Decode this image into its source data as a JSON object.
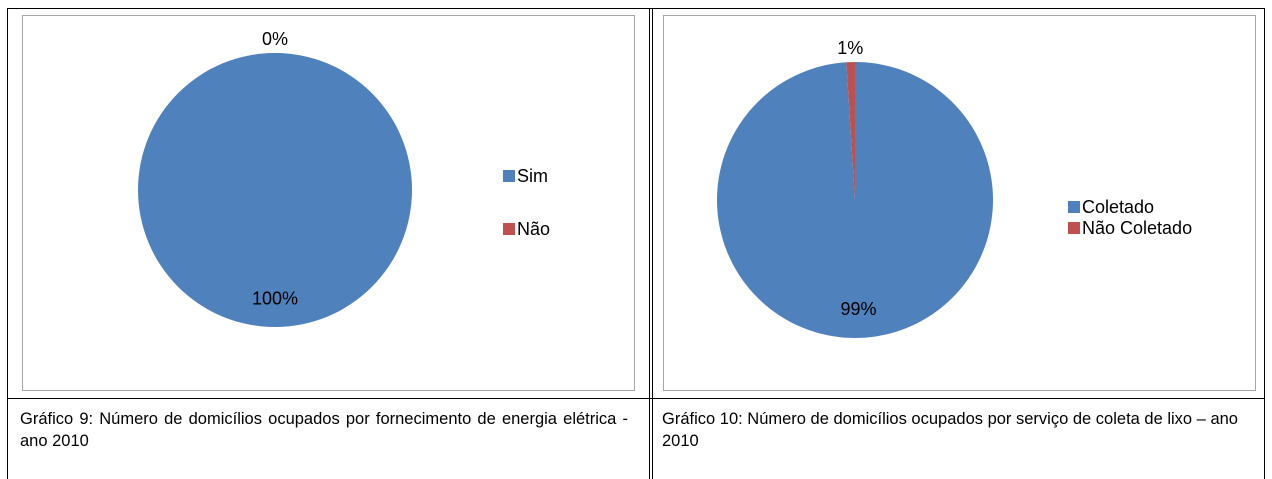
{
  "chart_data": [
    {
      "type": "pie",
      "categories": [
        "Sim",
        "Não"
      ],
      "values": [
        100,
        0
      ],
      "value_labels": [
        "100%",
        "0%"
      ],
      "colors": [
        "#4f81bd",
        "#c0504d"
      ],
      "legend": "right",
      "caption": "Gráfico 9: Número de domicílios ocupados por fornecimento de energia elétrica - ano 2010"
    },
    {
      "type": "pie",
      "categories": [
        "Coletado",
        "Não Coletado"
      ],
      "values": [
        99,
        1
      ],
      "value_labels": [
        "99%",
        "1%"
      ],
      "colors": [
        "#4f81bd",
        "#c0504d"
      ],
      "legend": "right",
      "caption": "Gráfico 10: Número de domicílios ocupados por serviço de coleta de lixo – ano 2010"
    }
  ]
}
